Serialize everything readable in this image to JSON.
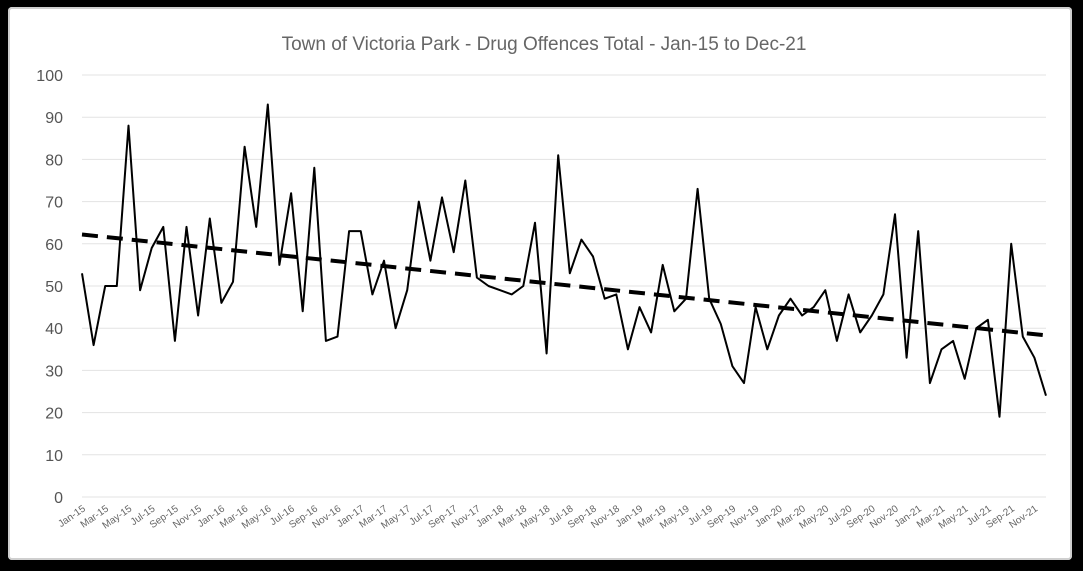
{
  "chart_data": {
    "type": "line",
    "title": "Town of Victoria Park - Drug Offences Total - Jan-15 to Dec-21",
    "xlabel": "",
    "ylabel": "",
    "ylim": [
      0,
      100
    ],
    "yticks": [
      0,
      10,
      20,
      30,
      40,
      50,
      60,
      70,
      80,
      90,
      100
    ],
    "grid": true,
    "x_tick_labels": [
      "Jan-15",
      "Mar-15",
      "May-15",
      "Jul-15",
      "Sep-15",
      "Nov-15",
      "Jan-16",
      "Mar-16",
      "May-16",
      "Jul-16",
      "Sep-16",
      "Nov-16",
      "Jan-17",
      "Mar-17",
      "May-17",
      "Jul-17",
      "Sep-17",
      "Nov-17",
      "Jan-18",
      "Mar-18",
      "May-18",
      "Jul-18",
      "Sep-18",
      "Nov-18",
      "Jan-19",
      "Mar-19",
      "May-19",
      "Jul-19",
      "Sep-19",
      "Nov-19",
      "Jan-20",
      "Mar-20",
      "May-20",
      "Jul-20",
      "Sep-20",
      "Nov-20",
      "Jan-21",
      "Mar-21",
      "May-21",
      "Jul-21",
      "Sep-21",
      "Nov-21"
    ],
    "series": [
      {
        "style": "solid",
        "values": [
          53,
          36,
          50,
          50,
          88,
          49,
          59,
          64,
          37,
          64,
          43,
          66,
          46,
          51,
          83,
          64,
          93,
          55,
          72,
          44,
          78,
          37,
          38,
          63,
          63,
          48,
          56,
          40,
          49,
          70,
          56,
          71,
          58,
          75,
          52,
          50,
          49,
          48,
          50,
          65,
          34,
          81,
          53,
          61,
          57,
          47,
          48,
          35,
          45,
          39,
          55,
          44,
          47,
          73,
          47,
          41,
          31,
          27,
          45,
          35,
          43,
          47,
          43,
          45,
          49,
          37,
          48,
          39,
          43,
          48,
          67,
          33,
          63,
          27,
          35,
          37,
          28,
          40,
          42,
          19,
          60,
          38,
          33,
          24
        ]
      },
      {
        "style": "dashed",
        "trend_start": 62.2,
        "trend_end": 38.3
      }
    ]
  }
}
